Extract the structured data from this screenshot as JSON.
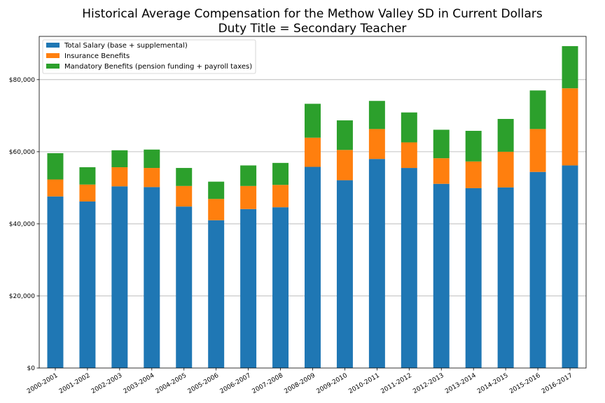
{
  "chart_data": {
    "type": "bar",
    "stacked": true,
    "title": [
      "Historical Average Compensation for the Methow Valley SD in Current Dollars",
      "Duty Title = Secondary Teacher"
    ],
    "xlabel": "",
    "ylabel": "",
    "categories": [
      "2000-2001",
      "2001-2002",
      "2002-2003",
      "2003-2004",
      "2004-2005",
      "2005-2006",
      "2006-2007",
      "2007-2008",
      "2008-2009",
      "2009-2010",
      "2010-2011",
      "2011-2012",
      "2012-2013",
      "2013-2014",
      "2014-2015",
      "2015-2016",
      "2016-2017"
    ],
    "series": [
      {
        "name": "Total Salary (base + supplemental)",
        "color": "#1f77b4",
        "values": [
          47600,
          46200,
          50400,
          50200,
          44800,
          41000,
          44100,
          44600,
          55800,
          52100,
          58000,
          55500,
          51100,
          49900,
          50100,
          54400,
          56200
        ]
      },
      {
        "name": "Insurance Benefits",
        "color": "#ff7f0e",
        "values": [
          4700,
          4700,
          5300,
          5300,
          5700,
          5900,
          6400,
          6200,
          8100,
          8400,
          8300,
          7100,
          7100,
          7400,
          9900,
          11900,
          21400
        ]
      },
      {
        "name": "Mandatory Benefits (pension funding + payroll taxes)",
        "color": "#2ca02c",
        "values": [
          7300,
          4800,
          4700,
          5100,
          5000,
          4800,
          5700,
          6100,
          9400,
          8200,
          7800,
          8300,
          7900,
          8500,
          9100,
          10700,
          11700
        ]
      }
    ],
    "ylim": [
      0,
      92000
    ],
    "yticks": [
      0,
      20000,
      40000,
      60000,
      80000
    ],
    "ytick_labels": [
      "$0",
      "$20,000",
      "$40,000",
      "$60,000",
      "$80,000"
    ],
    "grid": "horizontal",
    "legend_position": "top-left",
    "xtick_rotation": "30deg"
  }
}
